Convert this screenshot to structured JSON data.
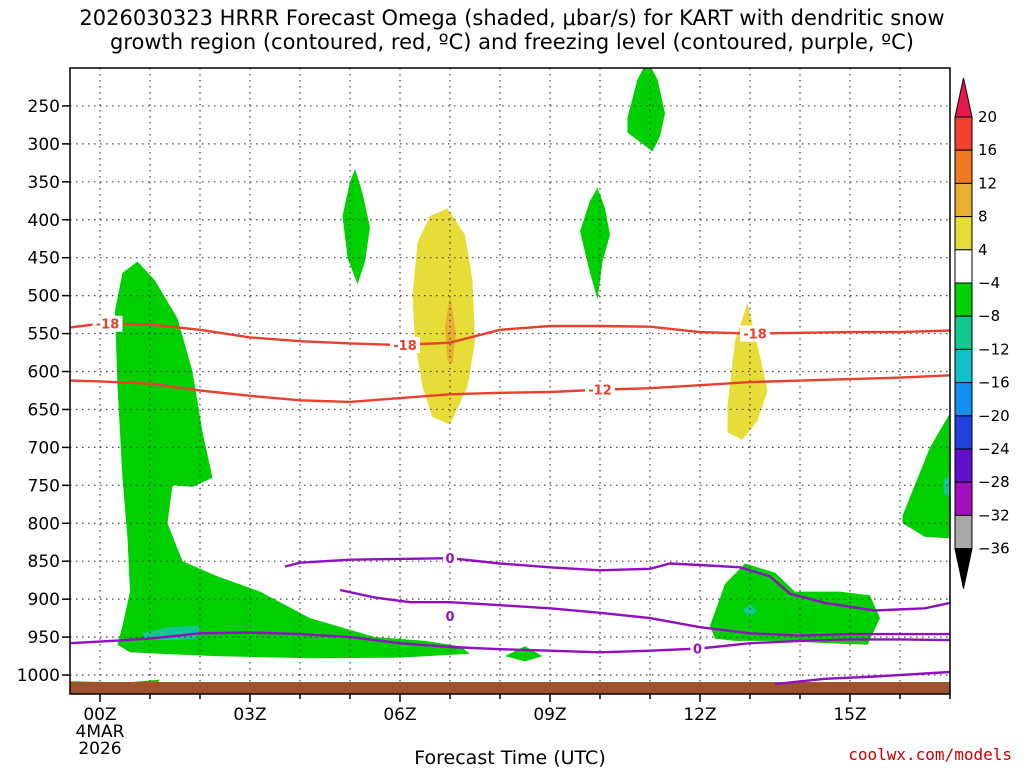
{
  "chart_data": {
    "type": "contour",
    "title_line1": "2026030323 HRRR Forecast Omega (shaded, μbar/s) for KART with dendritic snow",
    "title_line2": "growth region (contoured, red, ºC) and freezing level (contoured, purple, ºC)",
    "xlabel": "Forecast Time (UTC)",
    "credit": "coolwx.com/models",
    "x_ticks": [
      {
        "label": "00Z",
        "hour": 0,
        "sub1": "4MAR",
        "sub2": "2026"
      },
      {
        "label": "03Z",
        "hour": 3
      },
      {
        "label": "06Z",
        "hour": 6
      },
      {
        "label": "09Z",
        "hour": 9
      },
      {
        "label": "12Z",
        "hour": 12
      },
      {
        "label": "15Z",
        "hour": 15
      }
    ],
    "xlim": [
      -0.6,
      17
    ],
    "y_ticks": [
      250,
      300,
      350,
      400,
      450,
      500,
      550,
      600,
      650,
      700,
      750,
      800,
      850,
      900,
      950,
      1000
    ],
    "y_tick_labels": [
      "250",
      "300",
      "350",
      "400",
      "450",
      "500",
      "550",
      "600",
      "650",
      "700",
      "750",
      "800",
      "850",
      "900",
      "950",
      "1000"
    ],
    "ylim_hpa": [
      200,
      1025
    ],
    "colorbar": {
      "levels": [
        20,
        16,
        12,
        8,
        4,
        -4,
        -8,
        -12,
        -16,
        -20,
        -24,
        -28,
        -32,
        -36
      ],
      "labels": [
        "20",
        "16",
        "12",
        "8",
        "4",
        "−4",
        "−8",
        "−12",
        "−16",
        "−20",
        "−24",
        "−28",
        "−32",
        "−36"
      ],
      "colors": [
        "#e8184f",
        "#f04030",
        "#f07820",
        "#e8b030",
        "#e8dc38",
        "#ffffff",
        "#00d000",
        "#10c890",
        "#10c0c8",
        "#1090f0",
        "#2040e0",
        "#6010c8",
        "#a010c0",
        "#a8a8a8",
        "#000000"
      ]
    },
    "omega_regions": [
      {
        "name": "green-column-01z",
        "value": -6,
        "color": "#00d000",
        "pts": [
          [
            0.35,
            960
          ],
          [
            0.45,
            935
          ],
          [
            0.6,
            890
          ],
          [
            0.55,
            820
          ],
          [
            0.45,
            740
          ],
          [
            0.35,
            620
          ],
          [
            0.3,
            520
          ],
          [
            0.45,
            470
          ],
          [
            0.75,
            455
          ],
          [
            1.1,
            480
          ],
          [
            1.55,
            530
          ],
          [
            1.85,
            600
          ],
          [
            2.05,
            680
          ],
          [
            2.25,
            740
          ],
          [
            1.85,
            752
          ],
          [
            1.45,
            750
          ],
          [
            1.35,
            800
          ],
          [
            1.65,
            850
          ],
          [
            2.35,
            870
          ],
          [
            3.2,
            890
          ],
          [
            4.2,
            925
          ],
          [
            5.5,
            950
          ],
          [
            6.5,
            955
          ],
          [
            7.2,
            962
          ],
          [
            7.4,
            972
          ],
          [
            6.0,
            977
          ],
          [
            4.2,
            978
          ],
          [
            2.3,
            975
          ],
          [
            1.2,
            972
          ],
          [
            0.6,
            970
          ]
        ]
      },
      {
        "name": "green-blob-00z-ground",
        "value": -6,
        "color": "#00d000",
        "pts": [
          [
            -0.6,
            1008
          ],
          [
            0.5,
            1010
          ],
          [
            1.2,
            1006
          ],
          [
            1.1,
            1015
          ],
          [
            -0.6,
            1017
          ]
        ]
      },
      {
        "name": "teal-patch-01z",
        "value": -10,
        "color": "#10c890",
        "pts": [
          [
            0.85,
            945
          ],
          [
            1.35,
            937
          ],
          [
            2.0,
            935
          ],
          [
            1.95,
            952
          ],
          [
            1.4,
            954
          ],
          [
            0.9,
            953
          ]
        ]
      },
      {
        "name": "green-blob-05z",
        "value": -6,
        "color": "#00d000",
        "pts": [
          [
            4.85,
            395
          ],
          [
            5.0,
            350
          ],
          [
            5.1,
            333
          ],
          [
            5.25,
            365
          ],
          [
            5.4,
            410
          ],
          [
            5.3,
            455
          ],
          [
            5.15,
            485
          ],
          [
            4.95,
            450
          ]
        ]
      },
      {
        "name": "green-blob-10z",
        "value": -6,
        "color": "#00d000",
        "pts": [
          [
            9.6,
            415
          ],
          [
            9.8,
            375
          ],
          [
            9.95,
            358
          ],
          [
            10.1,
            385
          ],
          [
            10.2,
            420
          ],
          [
            10.05,
            455
          ],
          [
            9.95,
            505
          ],
          [
            9.8,
            470
          ]
        ]
      },
      {
        "name": "green-blob-11z",
        "value": -6,
        "color": "#00d000",
        "pts": [
          [
            10.55,
            265
          ],
          [
            10.75,
            215
          ],
          [
            10.95,
            190
          ],
          [
            11.15,
            215
          ],
          [
            11.3,
            260
          ],
          [
            11.2,
            290
          ],
          [
            11.05,
            310
          ],
          [
            10.75,
            295
          ],
          [
            10.55,
            285
          ]
        ]
      },
      {
        "name": "green-blob-0845z",
        "value": -6,
        "color": "#00d000",
        "pts": [
          [
            8.1,
            975
          ],
          [
            8.5,
            962
          ],
          [
            8.85,
            975
          ],
          [
            8.5,
            982
          ]
        ]
      },
      {
        "name": "yellow-column-07z",
        "value": 6,
        "color": "#e8dc38",
        "pts": [
          [
            6.25,
            500
          ],
          [
            6.35,
            430
          ],
          [
            6.6,
            395
          ],
          [
            6.95,
            385
          ],
          [
            7.3,
            420
          ],
          [
            7.45,
            480
          ],
          [
            7.5,
            560
          ],
          [
            7.35,
            620
          ],
          [
            7.0,
            670
          ],
          [
            6.65,
            660
          ],
          [
            6.45,
            620
          ],
          [
            6.3,
            560
          ]
        ]
      },
      {
        "name": "orange-core-07z",
        "value": 10,
        "color": "#e8b030",
        "pts": [
          [
            6.9,
            540
          ],
          [
            7.0,
            500
          ],
          [
            7.12,
            548
          ],
          [
            7.05,
            590
          ],
          [
            6.95,
            585
          ]
        ]
      },
      {
        "name": "yellow-blob-13z",
        "value": 6,
        "color": "#e8dc38",
        "pts": [
          [
            12.55,
            645
          ],
          [
            12.7,
            560
          ],
          [
            12.95,
            510
          ],
          [
            13.2,
            580
          ],
          [
            13.35,
            625
          ],
          [
            13.15,
            665
          ],
          [
            12.85,
            690
          ],
          [
            12.55,
            680
          ]
        ]
      },
      {
        "name": "green-blob-13z",
        "value": -6,
        "color": "#00d000",
        "pts": [
          [
            12.2,
            935
          ],
          [
            12.5,
            880
          ],
          [
            12.9,
            853
          ],
          [
            13.5,
            865
          ],
          [
            13.9,
            890
          ],
          [
            14.8,
            890
          ],
          [
            15.4,
            895
          ],
          [
            15.6,
            925
          ],
          [
            15.35,
            960
          ],
          [
            14.6,
            958
          ],
          [
            13.6,
            955
          ],
          [
            12.7,
            955
          ],
          [
            12.3,
            952
          ]
        ]
      },
      {
        "name": "teal-dot-13z",
        "value": -10,
        "color": "#10c890",
        "pts": [
          [
            12.85,
            915
          ],
          [
            13.0,
            907
          ],
          [
            13.15,
            915
          ],
          [
            13.0,
            923
          ]
        ]
      },
      {
        "name": "green-blob-17z",
        "value": -6,
        "color": "#00d000",
        "pts": [
          [
            16.05,
            790
          ],
          [
            16.6,
            700
          ],
          [
            17.0,
            655
          ],
          [
            17.0,
            820
          ],
          [
            16.5,
            818
          ],
          [
            16.05,
            800
          ]
        ]
      },
      {
        "name": "teal-dot-17z",
        "value": -10,
        "color": "#10c890",
        "pts": [
          [
            16.88,
            742
          ],
          [
            17.0,
            738
          ],
          [
            17.0,
            765
          ],
          [
            16.88,
            762
          ]
        ]
      }
    ],
    "isotherm_lines": [
      {
        "name": "isotherm-minus18",
        "label": "-18",
        "color": "#e84030",
        "pts": [
          [
            -0.6,
            542
          ],
          [
            0,
            537
          ],
          [
            1,
            538
          ],
          [
            2,
            545
          ],
          [
            3,
            555
          ],
          [
            4,
            560
          ],
          [
            5,
            563
          ],
          [
            6,
            565
          ],
          [
            7,
            562
          ],
          [
            8,
            545
          ],
          [
            9,
            540
          ],
          [
            10,
            540
          ],
          [
            11,
            541
          ],
          [
            12,
            548
          ],
          [
            13,
            550
          ],
          [
            14,
            549
          ],
          [
            15,
            548
          ],
          [
            16,
            548
          ],
          [
            17,
            546
          ]
        ],
        "label_at": [
          [
            0.15,
            537
          ],
          [
            6.1,
            565
          ],
          [
            13.1,
            550
          ]
        ]
      },
      {
        "name": "isotherm-minus12",
        "label": "-12",
        "color": "#e84030",
        "pts": [
          [
            -0.6,
            612
          ],
          [
            0,
            613
          ],
          [
            1,
            616
          ],
          [
            2,
            625
          ],
          [
            3,
            632
          ],
          [
            4,
            638
          ],
          [
            5,
            640
          ],
          [
            6,
            635
          ],
          [
            7,
            630
          ],
          [
            8,
            628
          ],
          [
            9,
            627
          ],
          [
            10,
            624
          ],
          [
            11,
            622
          ],
          [
            12,
            618
          ],
          [
            13,
            614
          ],
          [
            14,
            612
          ],
          [
            15,
            610
          ],
          [
            16,
            608
          ],
          [
            17,
            605
          ]
        ],
        "label_at": [
          [
            10.0,
            624
          ]
        ]
      }
    ],
    "freezing_lines": [
      {
        "name": "freezing-level-upper",
        "label": "0",
        "color": "#9010c0",
        "pts": [
          [
            3.7,
            857
          ],
          [
            4.0,
            852
          ],
          [
            5.0,
            848
          ],
          [
            6.0,
            847
          ],
          [
            7.0,
            846
          ],
          [
            8.0,
            853
          ],
          [
            9.0,
            858
          ],
          [
            10.0,
            862
          ],
          [
            11.0,
            860
          ],
          [
            11.4,
            853
          ],
          [
            12.0,
            855
          ],
          [
            12.8,
            858
          ],
          [
            13.4,
            870
          ],
          [
            13.8,
            893
          ],
          [
            14.5,
            905
          ],
          [
            15.5,
            915
          ],
          [
            16.5,
            912
          ],
          [
            17.0,
            905
          ]
        ],
        "label_at": [
          [
            7.0,
            846
          ]
        ]
      },
      {
        "name": "freezing-level-middle",
        "label": "0",
        "color": "#9010c0",
        "pts": [
          [
            4.8,
            888
          ],
          [
            5.5,
            898
          ],
          [
            6.2,
            904
          ],
          [
            7.0,
            904
          ],
          [
            8.0,
            908
          ],
          [
            9.0,
            912
          ],
          [
            10.0,
            918
          ],
          [
            11.0,
            925
          ],
          [
            12.0,
            937
          ],
          [
            13.0,
            945
          ],
          [
            14.0,
            948
          ],
          [
            15.0,
            946
          ],
          [
            16.0,
            946
          ],
          [
            17.0,
            946
          ]
        ],
        "label_at": [
          [
            7.0,
            922
          ]
        ]
      },
      {
        "name": "freezing-level-lower",
        "label": "0",
        "color": "#9010c0",
        "pts": [
          [
            -0.6,
            958
          ],
          [
            0,
            956
          ],
          [
            1,
            952
          ],
          [
            2,
            945
          ],
          [
            3,
            944
          ],
          [
            4,
            946
          ],
          [
            5,
            950
          ],
          [
            6,
            958
          ],
          [
            7,
            963
          ],
          [
            8,
            966
          ],
          [
            9,
            968
          ],
          [
            10,
            970
          ],
          [
            11,
            968
          ],
          [
            12,
            965
          ],
          [
            13,
            958
          ],
          [
            14,
            955
          ],
          [
            15,
            953
          ],
          [
            16,
            953
          ],
          [
            17,
            954
          ]
        ],
        "label_at": [
          [
            11.95,
            965
          ]
        ]
      },
      {
        "name": "freezing-level-ground",
        "label": "",
        "color": "#9010c0",
        "pts": [
          [
            13.5,
            1012
          ],
          [
            14.5,
            1005
          ],
          [
            15.5,
            1002
          ],
          [
            16.5,
            998
          ],
          [
            17.0,
            996
          ]
        ],
        "label_at": []
      }
    ],
    "ground_color": "#a0522d"
  }
}
